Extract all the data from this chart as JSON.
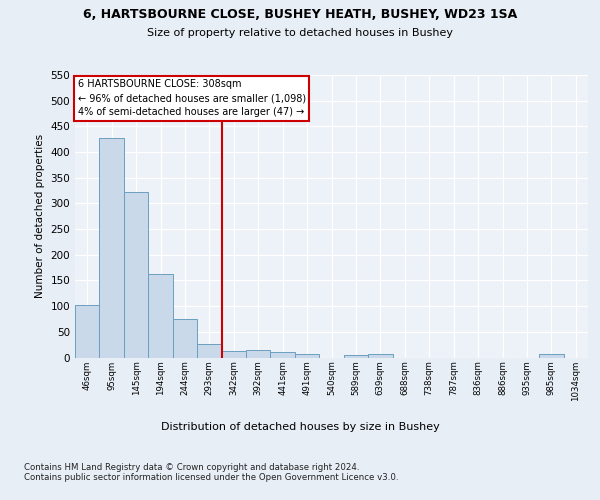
{
  "title": "6, HARTSBOURNE CLOSE, BUSHEY HEATH, BUSHEY, WD23 1SA",
  "subtitle": "Size of property relative to detached houses in Bushey",
  "xlabel": "Distribution of detached houses by size in Bushey",
  "ylabel": "Number of detached properties",
  "bin_labels": [
    "46sqm",
    "95sqm",
    "145sqm",
    "194sqm",
    "244sqm",
    "293sqm",
    "342sqm",
    "392sqm",
    "441sqm",
    "491sqm",
    "540sqm",
    "589sqm",
    "639sqm",
    "688sqm",
    "738sqm",
    "787sqm",
    "836sqm",
    "886sqm",
    "935sqm",
    "985sqm",
    "1034sqm"
  ],
  "bar_heights": [
    103,
    428,
    322,
    163,
    75,
    27,
    12,
    14,
    11,
    7,
    0,
    5,
    6,
    0,
    0,
    0,
    0,
    0,
    0,
    6,
    0
  ],
  "bar_color": "#c9d9ea",
  "bar_edge_color": "#6a9ec0",
  "vline_x": 5.5,
  "annotation_text": "6 HARTSBOURNE CLOSE: 308sqm\n← 96% of detached houses are smaller (1,098)\n4% of semi-detached houses are larger (47) →",
  "annotation_box_color": "#ffffff",
  "annotation_box_edge": "#cc0000",
  "vline_color": "#cc0000",
  "ylim": [
    0,
    550
  ],
  "yticks": [
    0,
    50,
    100,
    150,
    200,
    250,
    300,
    350,
    400,
    450,
    500,
    550
  ],
  "footer_text": "Contains HM Land Registry data © Crown copyright and database right 2024.\nContains public sector information licensed under the Open Government Licence v3.0.",
  "bg_color": "#e8eef6",
  "plot_bg_color": "#edf2f8"
}
